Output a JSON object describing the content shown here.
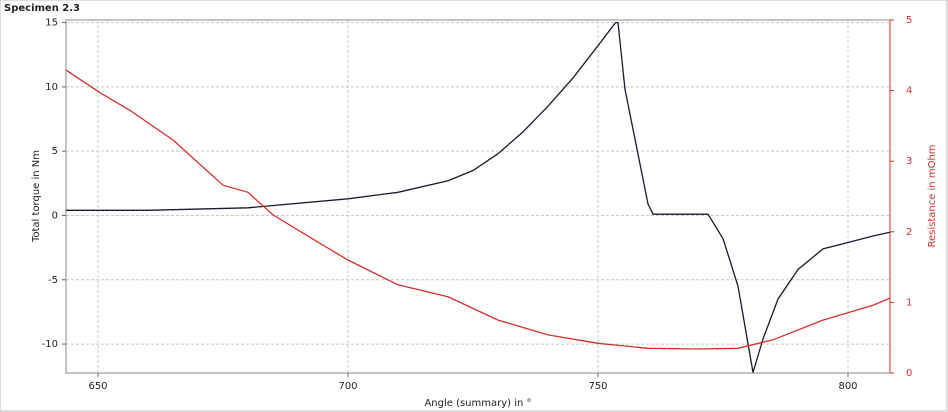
{
  "window_title": "Specimen 2.3",
  "chart_data": {
    "type": "line",
    "xlabel": "Angle (summary) in °",
    "ylabel": "Total torque in Nm",
    "y2label": "Resistance in mOhm",
    "xlim": [
      643.6,
      808.4
    ],
    "xticks": [
      650,
      700,
      750,
      800
    ],
    "ylim": [
      -12.25,
      15.2
    ],
    "yticks": [
      -10,
      -5,
      0,
      5,
      10,
      15
    ],
    "y2lim": [
      0,
      5
    ],
    "y2ticks": [
      0,
      1,
      2,
      3,
      4,
      5
    ],
    "y2color": "#d2312a",
    "grid": true,
    "series": [
      {
        "color": "#1a1a2a",
        "x": [
          643.6,
          660,
          680,
          700,
          710,
          720,
          725,
          730,
          735,
          740,
          745,
          750,
          753.5,
          754,
          755.4,
          760,
          761,
          772,
          775,
          778,
          781,
          783,
          786,
          790,
          795,
          800,
          805,
          808.4
        ],
        "values": [
          0.4,
          0.4,
          0.6,
          1.3,
          1.8,
          2.7,
          3.5,
          4.8,
          6.5,
          8.5,
          10.7,
          13.2,
          15,
          15,
          9.8,
          0.9,
          0.1,
          0.1,
          -1.8,
          -5.5,
          -12.2,
          -9.6,
          -6.5,
          -4.2,
          -2.6,
          -2.1,
          -1.6,
          -1.3
        ]
      },
      {
        "color": "#d2312a",
        "axis": "y2",
        "x": [
          643.6,
          650.4,
          656.4,
          665,
          675,
          680,
          685,
          695,
          700,
          710,
          720,
          730,
          740,
          750,
          760,
          770,
          778,
          785,
          795,
          805,
          808.4
        ],
        "values": [
          4.29,
          3.97,
          3.72,
          3.3,
          2.66,
          2.56,
          2.24,
          1.81,
          1.6,
          1.25,
          1.08,
          0.75,
          0.54,
          0.42,
          0.35,
          0.34,
          0.35,
          0.47,
          0.75,
          0.96,
          1.06
        ]
      }
    ]
  }
}
